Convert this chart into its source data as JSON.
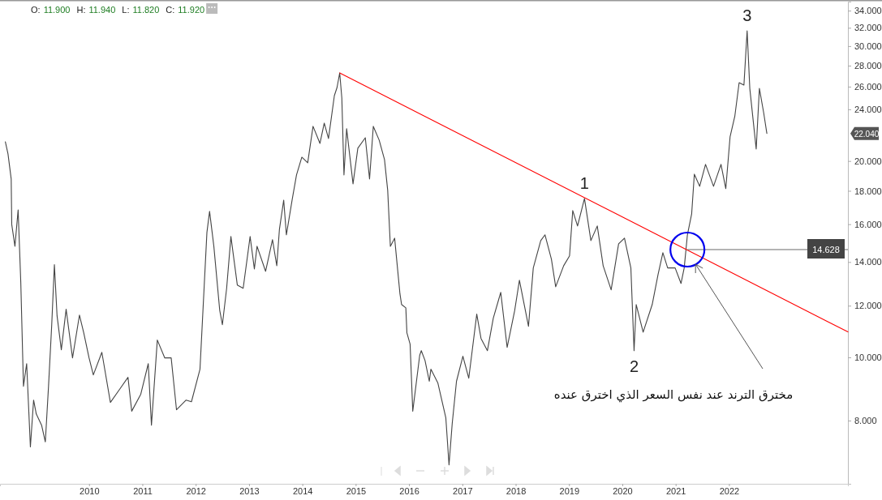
{
  "chart_data": {
    "type": "line",
    "subtitle": "O: 11.900  H: 11.940  L: 11.820  C: 11.920",
    "xlim": [
      2008.33,
      2024.23
    ],
    "xticks": [
      2010,
      2011,
      2012,
      2013,
      2014,
      2015,
      2016,
      2017,
      2018,
      2019,
      2020,
      2021,
      2022
    ],
    "ylim": [
      6.4,
      35.1
    ],
    "log": true,
    "yticks": [
      {
        "value": 8,
        "label": "8.000"
      },
      {
        "value": 10,
        "label": "10.000"
      },
      {
        "value": 12,
        "label": "12.000"
      },
      {
        "value": 14,
        "label": "14.000"
      },
      {
        "value": 16,
        "label": "16.000"
      },
      {
        "value": 18,
        "label": "18.000"
      },
      {
        "value": 20,
        "label": "20.000"
      },
      {
        "value": 24,
        "label": "24.000"
      },
      {
        "value": 26,
        "label": "26.000"
      },
      {
        "value": 28,
        "label": "28.000"
      },
      {
        "value": 30,
        "label": "30.000"
      },
      {
        "value": 32,
        "label": "32.000"
      },
      {
        "value": 34,
        "label": "34.000"
      }
    ],
    "grid": false,
    "marker": "none",
    "line_style": "solid",
    "series": [
      {
        "color": "#444444",
        "x": [
          2008.43,
          2008.48,
          2008.54,
          2008.55,
          2008.61,
          2008.67,
          2008.72,
          2008.77,
          2008.83,
          2008.9,
          2008.96,
          2009.01,
          2009.06,
          2009.11,
          2009.18,
          2009.24,
          2009.3,
          2009.35,
          2009.4,
          2009.48,
          2009.57,
          2009.69,
          2009.82,
          2009.9,
          2010.0,
          2010.08,
          2010.24,
          2010.4,
          2010.58,
          2010.73,
          2010.8,
          2010.97,
          2011.11,
          2011.17,
          2011.28,
          2011.42,
          2011.54,
          2011.64,
          2011.82,
          2011.92,
          2012.08,
          2012.16,
          2012.21,
          2012.26,
          2012.34,
          2012.45,
          2012.5,
          2012.58,
          2012.66,
          2012.78,
          2012.89,
          2013.02,
          2013.1,
          2013.15,
          2013.31,
          2013.44,
          2013.52,
          2013.57,
          2013.65,
          2013.7,
          2013.81,
          2013.89,
          2013.99,
          2014.1,
          2014.2,
          2014.33,
          2014.41,
          2014.49,
          2014.6,
          2014.65,
          2014.7,
          2014.74,
          2014.78,
          2014.83,
          2014.95,
          2015.04,
          2015.18,
          2015.26,
          2015.33,
          2015.44,
          2015.54,
          2015.6,
          2015.65,
          2015.73,
          2015.83,
          2015.86,
          2015.94,
          2015.96,
          2016.02,
          2016.07,
          2016.2,
          2016.23,
          2016.3,
          2016.38,
          2016.41,
          2016.54,
          2016.69,
          2016.75,
          2016.81,
          2016.89,
          2017.01,
          2017.12,
          2017.27,
          2017.35,
          2017.47,
          2017.58,
          2017.72,
          2017.84,
          2017.98,
          2018.07,
          2018.24,
          2018.33,
          2018.47,
          2018.55,
          2018.67,
          2018.75,
          2018.9,
          2019.01,
          2019.07,
          2019.16,
          2019.29,
          2019.41,
          2019.53,
          2019.64,
          2019.79,
          2019.93,
          2020.04,
          2020.16,
          2020.22,
          2020.26,
          2020.39,
          2020.56,
          2020.67,
          2020.76,
          2020.85,
          2020.99,
          2021.1,
          2021.16,
          2021.22,
          2021.3,
          2021.35,
          2021.45,
          2021.56,
          2021.71,
          2021.85,
          2021.94,
          2022.02,
          2022.11,
          2022.19,
          2022.28,
          2022.34,
          2022.39,
          2022.51,
          2022.57,
          2022.65,
          2022.71
        ],
        "values": [
          21.4,
          20.51,
          18.77,
          15.99,
          14.8,
          16.83,
          13.02,
          9.03,
          9.78,
          7.29,
          8.6,
          8.19,
          8.03,
          7.87,
          7.42,
          9.03,
          11.22,
          13.87,
          11.58,
          10.27,
          11.85,
          9.98,
          11.61,
          10.91,
          9.98,
          9.4,
          10.18,
          8.53,
          8.95,
          9.32,
          8.27,
          8.78,
          9.78,
          7.87,
          10.63,
          9.98,
          9.98,
          8.31,
          8.6,
          8.55,
          9.59,
          12.91,
          15.54,
          16.74,
          14.8,
          11.81,
          11.22,
          12.76,
          15.32,
          12.91,
          12.76,
          15.32,
          13.66,
          14.8,
          13.55,
          15.15,
          13.82,
          15.72,
          17.42,
          15.41,
          17.47,
          19.04,
          20.27,
          19.87,
          22.6,
          21.28,
          22.86,
          21.65,
          25.19,
          25.92,
          27.29,
          24.97,
          19.04,
          22.41,
          18.45,
          20.92,
          21.71,
          18.77,
          22.6,
          21.53,
          20.1,
          18.03,
          14.8,
          15.23,
          12.51,
          12.05,
          11.91,
          10.91,
          10.48,
          8.27,
          10.07,
          10.24,
          9.89,
          9.19,
          9.59,
          9.14,
          8.08,
          6.84,
          7.92,
          9.19,
          10.04,
          9.29,
          11.65,
          10.69,
          10.24,
          11.48,
          12.58,
          10.36,
          11.78,
          13.13,
          11.16,
          13.71,
          15.1,
          15.41,
          14.14,
          12.83,
          13.82,
          14.31,
          16.79,
          15.9,
          17.52,
          15.1,
          15.9,
          13.82,
          12.69,
          14.93,
          15.23,
          13.71,
          10.24,
          12.05,
          10.93,
          12.05,
          13.4,
          14.47,
          13.71,
          13.71,
          12.98,
          13.71,
          15.41,
          16.6,
          19.09,
          18.29,
          19.76,
          18.29,
          19.76,
          18.14,
          21.77,
          23.45,
          26.37,
          26.14,
          31.66,
          25.84,
          20.86,
          25.84,
          23.72,
          22.04
        ]
      },
      {
        "type": "line",
        "color": "#ff0000",
        "x": [
          2014.7,
          2024.23
        ],
        "values": [
          27.29,
          10.94
        ]
      }
    ],
    "annotations": [
      {
        "text": "1",
        "x": 2019.29,
        "y": 17.52
      },
      {
        "text": "2",
        "x": 2020.22,
        "y": 10.24
      },
      {
        "text": "3",
        "x": 2022.34,
        "y": 31.66
      },
      {
        "text": "14.628",
        "x": 2021.22,
        "y": 14.628
      },
      "مخترق الترند عند نفس السعر الذي اخترق عنده",
      "22.040"
    ]
  }
}
